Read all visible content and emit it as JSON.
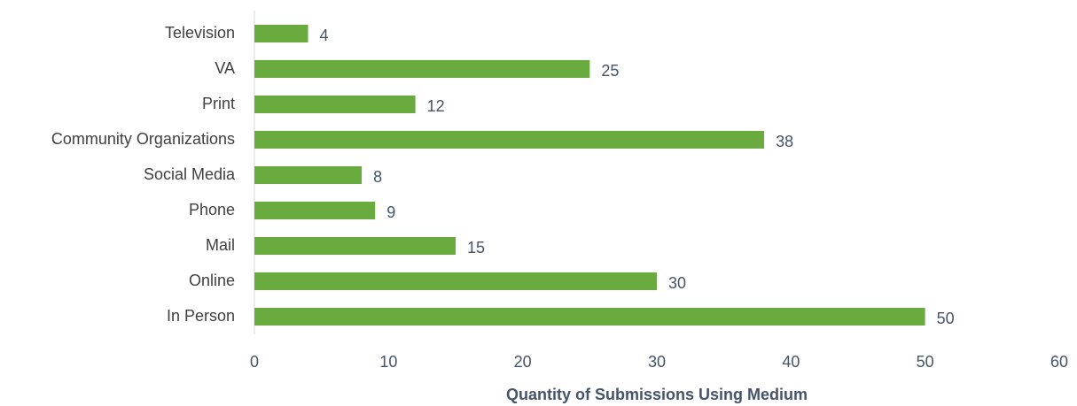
{
  "chart_data": {
    "type": "bar",
    "orientation": "horizontal",
    "x_label": "Quantity of Submissions Using Medium",
    "categories": [
      "Television",
      "VA",
      "Print",
      "Community Organizations",
      "Social Media",
      "Phone",
      "Mail",
      "Online",
      "In Person"
    ],
    "values": [
      4,
      25,
      12,
      38,
      8,
      9,
      15,
      30,
      50
    ],
    "color": "#6aab40",
    "xlim": [
      0,
      60
    ],
    "xticks": [
      0,
      10,
      20,
      30,
      40,
      50,
      60
    ],
    "grid": false
  }
}
